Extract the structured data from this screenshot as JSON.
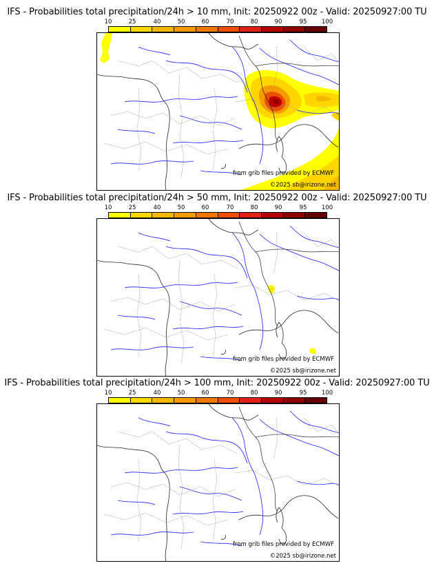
{
  "colorbar": {
    "ticks": [
      "10",
      "25",
      "40",
      "50",
      "60",
      "70",
      "80",
      "90",
      "95",
      "100"
    ],
    "colors": [
      "#ffff00",
      "#ffd700",
      "#f5b800",
      "#f59b00",
      "#f07800",
      "#eb5000",
      "#e02010",
      "#b40000",
      "#8c0000",
      "#640000"
    ]
  },
  "panels": [
    {
      "title": "IFS - Probabilities total precipitation/24h > 10 mm, Init: 20250922 00z - Valid: 20250927:00 TU",
      "source_credit": "from grib files provided by ECMWF",
      "copyright": "©2025 sb@irizone.net"
    },
    {
      "title": "IFS - Probabilities total precipitation/24h > 50 mm, Init: 20250922 00z - Valid: 20250927:00 TU",
      "source_credit": "from grib files provided by ECMWF",
      "copyright": "©2025 sb@irizone.net"
    },
    {
      "title": "IFS - Probabilities total precipitation/24h > 100 mm, Init: 20250922 00z - Valid: 20250927:00 TU",
      "source_credit": "from grib files provided by ECMWF",
      "copyright": "©2025 sb@irizone.net"
    }
  ]
}
